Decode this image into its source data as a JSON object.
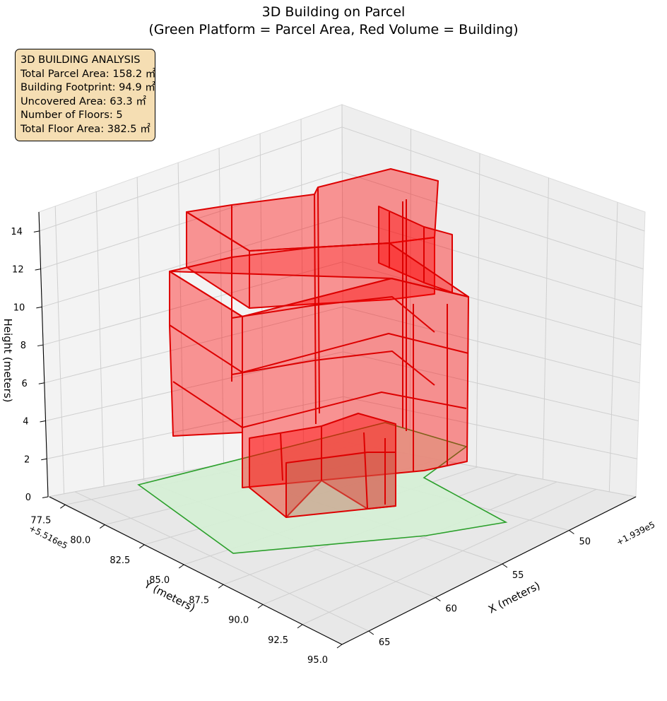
{
  "title_line1": "3D Building on Parcel",
  "title_line2": "(Green Platform = Parcel Area, Red Volume = Building)",
  "info_box": {
    "header": "3D BUILDING ANALYSIS",
    "lines": [
      "Total Parcel Area: 158.2 ㎡",
      "Building Footprint: 94.9 ㎡",
      "Uncovered Area: 63.3 ㎡",
      "Number of Floors: 5",
      "Total Floor Area: 382.5 ㎡"
    ]
  },
  "chart_data": {
    "type": "3d-polygon",
    "title": "3D Building on Parcel\n(Green Platform = Parcel Area, Red Volume = Building)",
    "axes": {
      "x": {
        "label": "X (meters)",
        "ticks": [
          "50",
          "55",
          "60",
          "65"
        ],
        "offset_label": "+1.939e5",
        "range": [
          45,
          67
        ]
      },
      "y": {
        "label": "Y (meters)",
        "ticks": [
          "77.5",
          "80.0",
          "82.5",
          "85.0",
          "87.5",
          "90.0",
          "92.5",
          "95.0"
        ],
        "offset_label": "+5.516e5",
        "range": [
          76.5,
          95
        ]
      },
      "z": {
        "label": "Height (meters)",
        "ticks": [
          "0",
          "2",
          "4",
          "6",
          "8",
          "10",
          "12",
          "14"
        ],
        "range": [
          0,
          15
        ]
      }
    },
    "grid": true,
    "stats": {
      "total_parcel_area_m2": 158.2,
      "building_footprint_m2": 94.9,
      "uncovered_area_m2": 63.3,
      "number_of_floors": 5,
      "total_floor_area_m2": 382.5
    },
    "series": [
      {
        "name": "Parcel Area",
        "color": "#2ca02c",
        "fill": "#d5f0d5"
      },
      {
        "name": "Building",
        "color": "#e00000",
        "fill": "#ff0000"
      }
    ]
  }
}
